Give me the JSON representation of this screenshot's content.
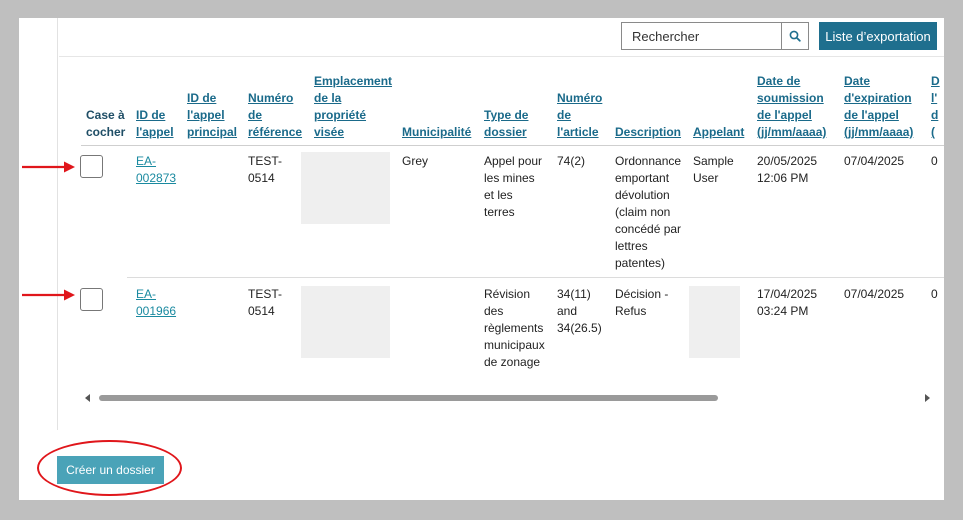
{
  "toolbar": {
    "search_placeholder": "Rechercher",
    "export_label": "Liste d’exportation"
  },
  "columns": [
    [
      "Case à",
      "cocher"
    ],
    [
      "ID de",
      "l'appel"
    ],
    [
      "ID de",
      "l'appel",
      "principal"
    ],
    [
      "Numéro",
      "de",
      "référence"
    ],
    [
      "Emplacement",
      "de la",
      "propriété",
      "visée"
    ],
    [
      "Municipalité"
    ],
    [
      "Type de",
      "dossier"
    ],
    [
      "Numéro",
      "de",
      "l'article"
    ],
    [
      "Description"
    ],
    [
      "Appelant"
    ],
    [
      "Date de",
      "soumission",
      "de l'appel",
      "(jj/mm/aaaa)"
    ],
    [
      "Date",
      "d'expiration",
      "de l'appel",
      "(jj/mm/aaaa)"
    ],
    [
      "D",
      "l'",
      "d",
      "("
    ]
  ],
  "rows": [
    {
      "id": [
        "EA-",
        "002873"
      ],
      "reference": [
        "TEST-",
        "0514"
      ],
      "municipality": "Grey",
      "type": [
        "Appel pour",
        "les mines",
        "et les",
        "terres"
      ],
      "article": [
        "74(2)"
      ],
      "description": [
        "Ordonnance",
        "emportant",
        "dévolution",
        "(claim non",
        "concédé par",
        "lettres",
        "patentes)"
      ],
      "appellant": [
        "Sample",
        "User"
      ],
      "submitted": [
        "20/05/2025",
        "12:06 PM"
      ],
      "expires": "07/04/2025",
      "overflow": "0"
    },
    {
      "id": [
        "EA-",
        "001966"
      ],
      "reference": [
        "TEST-",
        "0514"
      ],
      "municipality": "",
      "type": [
        "Révision",
        "des",
        "règlements",
        "municipaux",
        "de zonage"
      ],
      "article": [
        "34(11)",
        "and",
        "34(26.5)"
      ],
      "description": [
        "Décision -",
        "Refus"
      ],
      "appellant": [],
      "submitted": [
        "17/04/2025",
        "03:24 PM"
      ],
      "expires": "07/04/2025",
      "overflow": "0"
    }
  ],
  "footer": {
    "create_label": "Créer un dossier"
  }
}
